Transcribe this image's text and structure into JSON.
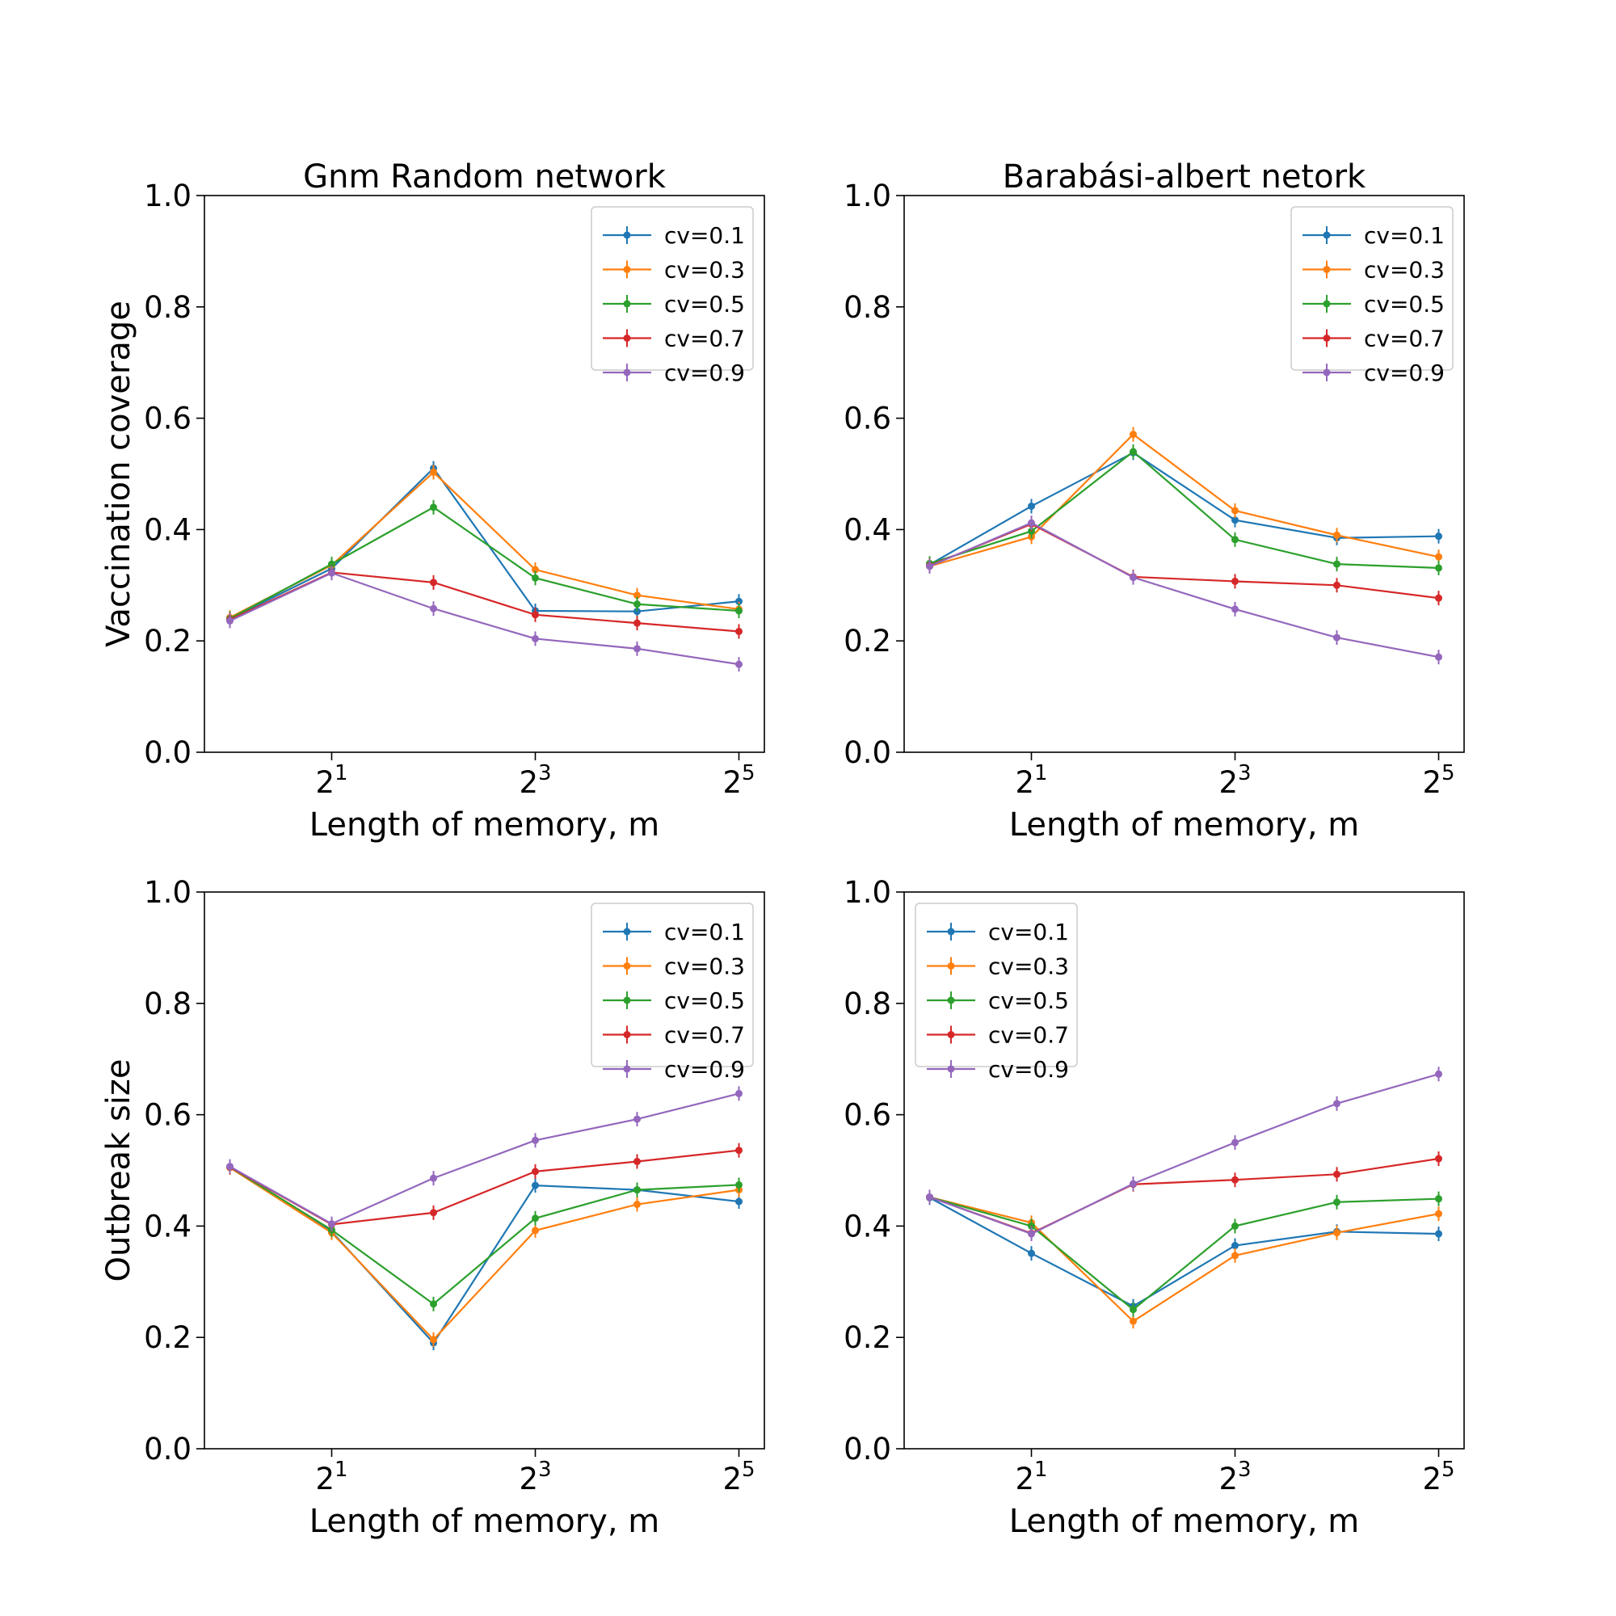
{
  "chart_data": [
    {
      "type": "line",
      "title": "Gnm Random network",
      "xlabel": "Length of memory, m",
      "ylabel": "Vaccination coverage",
      "x": [
        1,
        2,
        4,
        8,
        16,
        32
      ],
      "xscale": "log2",
      "xticks": [
        {
          "value": 2,
          "base": "2",
          "exp": "1"
        },
        {
          "value": 8,
          "base": "2",
          "exp": "3"
        },
        {
          "value": 32,
          "base": "2",
          "exp": "5"
        }
      ],
      "ylim": [
        0,
        1
      ],
      "yticks": [
        "0.0",
        "0.2",
        "0.4",
        "0.6",
        "0.8",
        "1.0"
      ],
      "legend": "top-right",
      "series": [
        {
          "name": "cv=0.1",
          "color": "#1f77b4",
          "values": [
            0.24,
            0.33,
            0.51,
            0.254,
            0.253,
            0.271
          ]
        },
        {
          "name": "cv=0.3",
          "color": "#ff7f0e",
          "values": [
            0.242,
            0.336,
            0.503,
            0.328,
            0.282,
            0.257
          ]
        },
        {
          "name": "cv=0.5",
          "color": "#2ca02c",
          "values": [
            0.24,
            0.338,
            0.44,
            0.313,
            0.266,
            0.254
          ]
        },
        {
          "name": "cv=0.7",
          "color": "#d62728",
          "values": [
            0.238,
            0.323,
            0.305,
            0.247,
            0.232,
            0.217
          ]
        },
        {
          "name": "cv=0.9",
          "color": "#9467bd",
          "values": [
            0.236,
            0.322,
            0.258,
            0.204,
            0.186,
            0.158
          ]
        }
      ]
    },
    {
      "type": "line",
      "title": "Barabási-albert netork",
      "xlabel": "Length of memory, m",
      "ylabel": "",
      "x": [
        1,
        2,
        4,
        8,
        16,
        32
      ],
      "xscale": "log2",
      "xticks": [
        {
          "value": 2,
          "base": "2",
          "exp": "1"
        },
        {
          "value": 8,
          "base": "2",
          "exp": "3"
        },
        {
          "value": 32,
          "base": "2",
          "exp": "5"
        }
      ],
      "ylim": [
        0,
        1
      ],
      "yticks": [
        "0.0",
        "0.2",
        "0.4",
        "0.6",
        "0.8",
        "1.0"
      ],
      "legend": "top-right",
      "series": [
        {
          "name": "cv=0.1",
          "color": "#1f77b4",
          "values": [
            0.337,
            0.442,
            0.538,
            0.417,
            0.385,
            0.388
          ]
        },
        {
          "name": "cv=0.3",
          "color": "#ff7f0e",
          "values": [
            0.334,
            0.387,
            0.571,
            0.434,
            0.39,
            0.351
          ]
        },
        {
          "name": "cv=0.5",
          "color": "#2ca02c",
          "values": [
            0.339,
            0.397,
            0.54,
            0.382,
            0.338,
            0.331
          ]
        },
        {
          "name": "cv=0.7",
          "color": "#d62728",
          "values": [
            0.335,
            0.41,
            0.315,
            0.307,
            0.3,
            0.277
          ]
        },
        {
          "name": "cv=0.9",
          "color": "#9467bd",
          "values": [
            0.334,
            0.412,
            0.314,
            0.257,
            0.206,
            0.171
          ]
        }
      ]
    },
    {
      "type": "line",
      "title": "",
      "xlabel": "Length of memory, m",
      "ylabel": "Outbreak size",
      "x": [
        1,
        2,
        4,
        8,
        16,
        32
      ],
      "xscale": "log2",
      "xticks": [
        {
          "value": 2,
          "base": "2",
          "exp": "1"
        },
        {
          "value": 8,
          "base": "2",
          "exp": "3"
        },
        {
          "value": 32,
          "base": "2",
          "exp": "5"
        }
      ],
      "ylim": [
        0,
        1
      ],
      "yticks": [
        "0.0",
        "0.2",
        "0.4",
        "0.6",
        "0.8",
        "1.0"
      ],
      "legend": "top-right",
      "series": [
        {
          "name": "cv=0.1",
          "color": "#1f77b4",
          "values": [
            0.506,
            0.39,
            0.19,
            0.473,
            0.465,
            0.444
          ]
        },
        {
          "name": "cv=0.3",
          "color": "#ff7f0e",
          "values": [
            0.505,
            0.388,
            0.196,
            0.392,
            0.439,
            0.465
          ]
        },
        {
          "name": "cv=0.5",
          "color": "#2ca02c",
          "values": [
            0.506,
            0.393,
            0.26,
            0.414,
            0.465,
            0.474
          ]
        },
        {
          "name": "cv=0.7",
          "color": "#d62728",
          "values": [
            0.506,
            0.403,
            0.424,
            0.498,
            0.516,
            0.536
          ]
        },
        {
          "name": "cv=0.9",
          "color": "#9467bd",
          "values": [
            0.507,
            0.404,
            0.486,
            0.554,
            0.592,
            0.638
          ]
        }
      ]
    },
    {
      "type": "line",
      "title": "",
      "xlabel": "Length of memory, m",
      "ylabel": "",
      "x": [
        1,
        2,
        4,
        8,
        16,
        32
      ],
      "xscale": "log2",
      "xticks": [
        {
          "value": 2,
          "base": "2",
          "exp": "1"
        },
        {
          "value": 8,
          "base": "2",
          "exp": "3"
        },
        {
          "value": 32,
          "base": "2",
          "exp": "5"
        }
      ],
      "ylim": [
        0,
        1
      ],
      "yticks": [
        "0.0",
        "0.2",
        "0.4",
        "0.6",
        "0.8",
        "1.0"
      ],
      "legend": "top-left",
      "series": [
        {
          "name": "cv=0.1",
          "color": "#1f77b4",
          "values": [
            0.451,
            0.351,
            0.256,
            0.365,
            0.39,
            0.386
          ]
        },
        {
          "name": "cv=0.3",
          "color": "#ff7f0e",
          "values": [
            0.452,
            0.406,
            0.229,
            0.347,
            0.388,
            0.422
          ]
        },
        {
          "name": "cv=0.5",
          "color": "#2ca02c",
          "values": [
            0.452,
            0.4,
            0.25,
            0.4,
            0.443,
            0.449
          ]
        },
        {
          "name": "cv=0.7",
          "color": "#d62728",
          "values": [
            0.452,
            0.387,
            0.475,
            0.483,
            0.493,
            0.521
          ]
        },
        {
          "name": "cv=0.9",
          "color": "#9467bd",
          "values": [
            0.452,
            0.386,
            0.476,
            0.55,
            0.62,
            0.673
          ]
        }
      ]
    }
  ]
}
